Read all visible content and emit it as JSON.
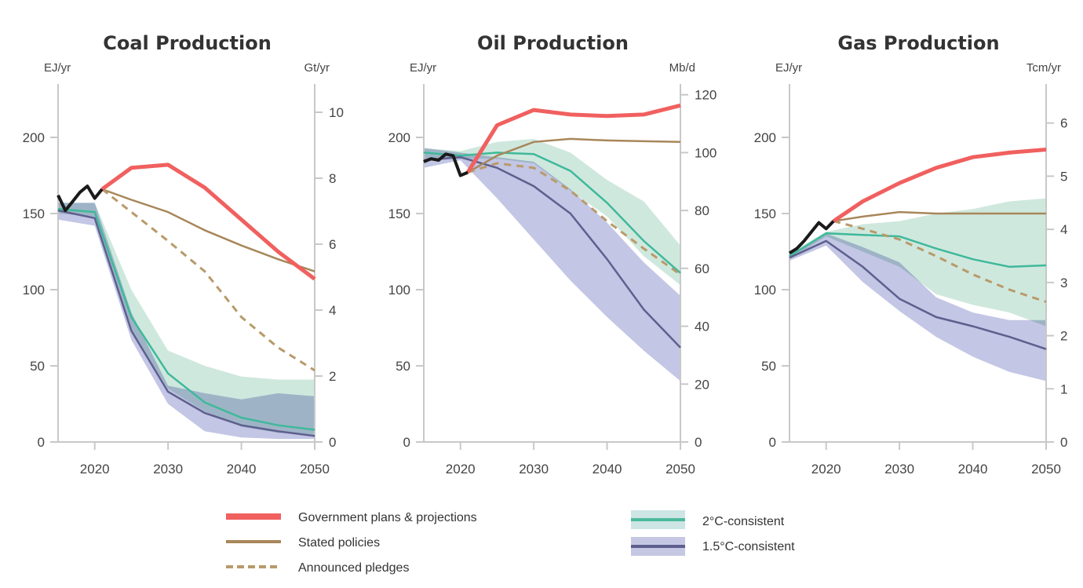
{
  "colors": {
    "government": "#f0605f",
    "stated": "#a8875a",
    "announced": "#b89a6a",
    "historical": "#1a1a1a",
    "c2_line": "#3fb99a",
    "c2_band": "#cfe8de",
    "c15_line": "#5f5f8f",
    "c15_band": "#b9bcdf",
    "axis": "#c8c8c8"
  },
  "legend": {
    "government": "Government plans & projections",
    "stated": "Stated policies",
    "announced": "Announced pledges",
    "c2": "2°C-consistent",
    "c15": "1.5°C-consistent"
  },
  "chart_data": [
    {
      "type": "line",
      "title": "Coal Production",
      "ylabel": "EJ/yr",
      "ylabel_right": "Gt/yr",
      "xlim": [
        2015,
        2050
      ],
      "ylim": [
        0,
        235
      ],
      "xticks": [
        2020,
        2030,
        2040,
        2050
      ],
      "yticks": [
        0,
        50,
        100,
        150,
        200
      ],
      "right_ticks": [
        0,
        2,
        4,
        6,
        8,
        10
      ],
      "right_scale": 0.04619,
      "historical": {
        "x": [
          2015,
          2016,
          2017,
          2018,
          2019,
          2020,
          2021
        ],
        "y": [
          162,
          152,
          158,
          164,
          168,
          160,
          166
        ]
      },
      "government": {
        "x": [
          2021,
          2025,
          2030,
          2035,
          2040,
          2045,
          2050
        ],
        "y": [
          166,
          180,
          182,
          167,
          146,
          125,
          107
        ]
      },
      "stated": {
        "x": [
          2021,
          2025,
          2030,
          2035,
          2040,
          2045,
          2050
        ],
        "y": [
          166,
          159,
          151,
          139,
          129,
          120,
          112
        ]
      },
      "announced": {
        "x": [
          2021,
          2025,
          2030,
          2035,
          2040,
          2045,
          2050
        ],
        "y": [
          166,
          151,
          132,
          112,
          82,
          62,
          47
        ]
      },
      "x": [
        2015,
        2020,
        2025,
        2030,
        2035,
        2040,
        2045,
        2050
      ],
      "c2": {
        "median": [
          153,
          151,
          82,
          45,
          26,
          16,
          11,
          8
        ],
        "upper": [
          157,
          157,
          100,
          60,
          50,
          43,
          41,
          41
        ],
        "lower": [
          150,
          148,
          72,
          35,
          20,
          10,
          6,
          5
        ]
      },
      "c15": {
        "median": [
          152,
          147,
          73,
          33,
          19,
          11,
          7,
          4
        ],
        "upper": [
          157,
          157,
          85,
          37,
          32,
          28,
          32,
          30
        ],
        "lower": [
          146,
          142,
          67,
          25,
          7,
          3,
          2,
          2
        ]
      }
    },
    {
      "type": "line",
      "title": "Oil Production",
      "ylabel": "EJ/yr",
      "ylabel_right": "Mb/d",
      "xlim": [
        2015,
        2050
      ],
      "ylim": [
        0,
        235
      ],
      "xticks": [
        2020,
        2030,
        2040,
        2050
      ],
      "yticks": [
        0,
        50,
        100,
        150,
        200
      ],
      "right_ticks": [
        0,
        20,
        40,
        60,
        80,
        100,
        120
      ],
      "right_scale": 0.5263,
      "historical": {
        "x": [
          2015,
          2016,
          2017,
          2018,
          2019,
          2020,
          2021
        ],
        "y": [
          184,
          186,
          185,
          189,
          188,
          175,
          177
        ]
      },
      "government": {
        "x": [
          2021,
          2025,
          2030,
          2035,
          2040,
          2045,
          2050
        ],
        "y": [
          177,
          208,
          218,
          215,
          214,
          215,
          221
        ]
      },
      "stated": {
        "x": [
          2021,
          2025,
          2030,
          2035,
          2040,
          2045,
          2050
        ],
        "y": [
          177,
          188,
          197,
          199,
          198,
          197.5,
          197
        ]
      },
      "announced": {
        "x": [
          2021,
          2025,
          2030,
          2035,
          2040,
          2045,
          2050
        ],
        "y": [
          177,
          183,
          180,
          165,
          145,
          127,
          110
        ]
      },
      "x": [
        2015,
        2020,
        2025,
        2030,
        2035,
        2040,
        2045,
        2050
      ],
      "c2": {
        "median": [
          190,
          188,
          190,
          189,
          178,
          157,
          132,
          111
        ],
        "upper": [
          193,
          191,
          197,
          199,
          190,
          172,
          158,
          129
        ],
        "lower": [
          186,
          186,
          186,
          183,
          165,
          148,
          122,
          103
        ]
      },
      "c15": {
        "median": [
          185,
          187,
          180,
          168,
          150,
          120,
          87,
          62
        ],
        "upper": [
          193,
          190,
          187,
          184,
          166,
          144,
          118,
          96
        ],
        "lower": [
          180,
          185,
          160,
          133,
          106,
          82,
          60,
          40
        ]
      }
    },
    {
      "type": "line",
      "title": "Gas Production",
      "ylabel": "EJ/yr",
      "ylabel_right": "Tcm/yr",
      "xlim": [
        2015,
        2050
      ],
      "ylim": [
        0,
        235
      ],
      "xticks": [
        2020,
        2030,
        2040,
        2050
      ],
      "yticks": [
        0,
        50,
        100,
        150,
        200
      ],
      "right_ticks": [
        0,
        1,
        2,
        3,
        4,
        5,
        6
      ],
      "right_scale": 0.02865,
      "historical": {
        "x": [
          2015,
          2016,
          2017,
          2018,
          2019,
          2020,
          2021
        ],
        "y": [
          124,
          127,
          132,
          138,
          144,
          140,
          145
        ]
      },
      "government": {
        "x": [
          2021,
          2025,
          2030,
          2035,
          2040,
          2045,
          2050
        ],
        "y": [
          145,
          158,
          170,
          180,
          187,
          190,
          192
        ]
      },
      "stated": {
        "x": [
          2021,
          2025,
          2030,
          2035,
          2040,
          2045,
          2050
        ],
        "y": [
          145,
          148,
          151,
          150,
          150,
          150,
          150
        ]
      },
      "announced": {
        "x": [
          2021,
          2025,
          2030,
          2035,
          2040,
          2045,
          2050
        ],
        "y": [
          145,
          140,
          133,
          122,
          110,
          100,
          92
        ]
      },
      "x": [
        2015,
        2020,
        2025,
        2030,
        2035,
        2040,
        2045,
        2050
      ],
      "c2": {
        "median": [
          122,
          137,
          136,
          135,
          127,
          120,
          115,
          116
        ],
        "upper": [
          124,
          138,
          143,
          145,
          150,
          153,
          158,
          160
        ],
        "lower": [
          120,
          135,
          125,
          115,
          97,
          90,
          85,
          76
        ]
      },
      "c15": {
        "median": [
          121,
          132,
          115,
          94,
          82,
          76,
          69,
          61
        ],
        "upper": [
          123,
          137,
          128,
          118,
          95,
          85,
          80,
          80
        ],
        "lower": [
          119,
          129,
          105,
          86,
          69,
          56,
          46,
          40
        ]
      }
    }
  ]
}
